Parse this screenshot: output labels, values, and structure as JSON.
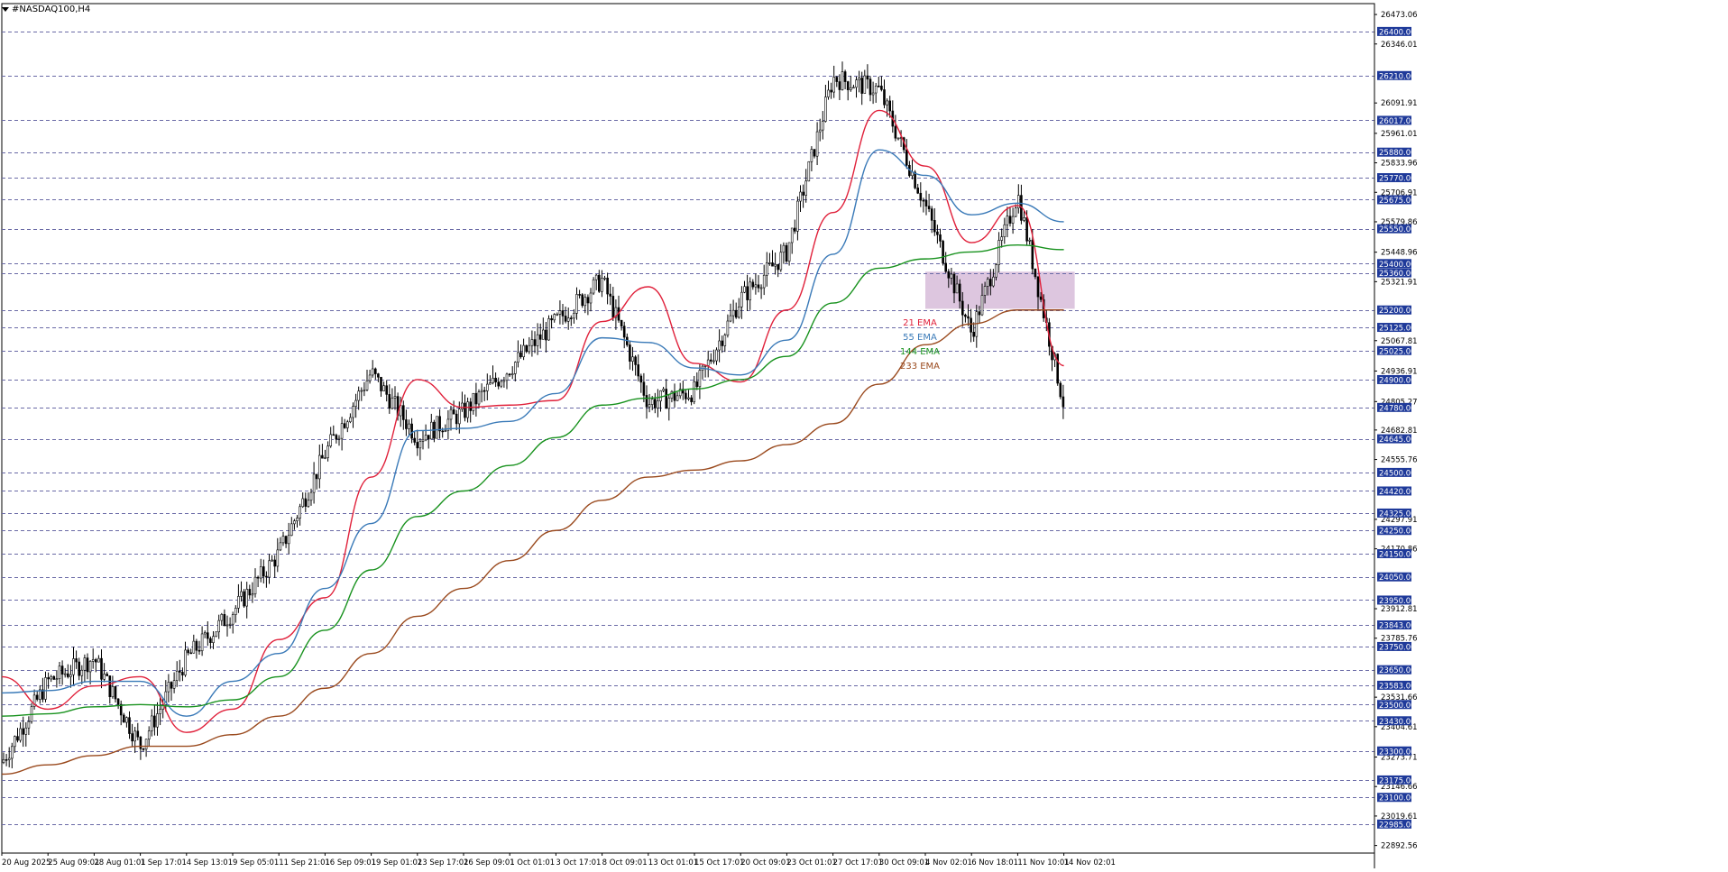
{
  "window": {
    "title": "#NASDAQ100,H4"
  },
  "colors": {
    "background": "#ffffff",
    "candle": "#000000",
    "grid": "#6a6aa6",
    "label_bg": "#1f3a9a",
    "label_text": "#ffffff",
    "zone": "#d7bcd9",
    "ema21": "#e0203a",
    "ema55": "#3a7ab8",
    "ema144": "#18921e",
    "ema233": "#9a4a1e"
  },
  "chart_data": {
    "type": "line",
    "instrument": "#NASDAQ100",
    "timeframe": "H4",
    "ylim": [
      22860,
      26520
    ],
    "grid": false,
    "y_ticks": [
      "26473.06",
      "26346.01",
      "26091.91",
      "25961.01",
      "25833.96",
      "25706.91",
      "25579.86",
      "25448.96",
      "25321.91",
      "25067.81",
      "24936.91",
      "24805.27",
      "24682.81",
      "24555.76",
      "24297.91",
      "24170.86",
      "23912.81",
      "23785.76",
      "23531.66",
      "23404.61",
      "23273.71",
      "23146.66",
      "23019.61",
      "22892.56"
    ],
    "x_ticks": [
      "20 Aug 2025",
      "25 Aug 09:01",
      "28 Aug 01:01",
      "1 Sep 17:01",
      "4 Sep 13:01",
      "9 Sep 05:01",
      "11 Sep 21:01",
      "16 Sep 09:01",
      "19 Sep 01:01",
      "23 Sep 17:01",
      "26 Sep 09:01",
      "1 Oct 01:01",
      "3 Oct 17:01",
      "8 Oct 09:01",
      "13 Oct 01:01",
      "15 Oct 17:01",
      "20 Oct 09:01",
      "23 Oct 01:01",
      "27 Oct 17:01",
      "30 Oct 09:01",
      "4 Nov 02:01",
      "6 Nov 18:01",
      "11 Nov 10:01",
      "14 Nov 02:01"
    ],
    "levels": [
      26400,
      26210,
      26017,
      25880,
      25770,
      25675,
      25550,
      25400,
      25360,
      25200,
      25125,
      25025,
      24900,
      24780,
      24645,
      24500,
      24420,
      24325,
      24250,
      24150,
      24050,
      23950,
      23843,
      23750,
      23650,
      23583,
      23500,
      23430,
      23300,
      23175,
      23100,
      22985
    ],
    "zone": {
      "from_x": "4 Nov 02:01",
      "to_x": "14 Nov 02:01",
      "top": 25365,
      "bottom": 25205
    },
    "price_anchors": [
      [
        "20 Aug 2025",
        23250
      ],
      [
        "25 Aug 09:01",
        23600
      ],
      [
        "28 Aug 01:01",
        23700
      ],
      [
        "1 Sep 17:01",
        23320
      ],
      [
        "4 Sep 13:01",
        23700
      ],
      [
        "9 Sep 05:01",
        23900
      ],
      [
        "11 Sep 21:01",
        24150
      ],
      [
        "16 Sep 09:01",
        24580
      ],
      [
        "19 Sep 01:01",
        24930
      ],
      [
        "23 Sep 17:01",
        24650
      ],
      [
        "26 Sep 09:01",
        24760
      ],
      [
        "1 Oct 01:01",
        24950
      ],
      [
        "3 Oct 17:01",
        25150
      ],
      [
        "8 Oct 09:01",
        25330
      ],
      [
        "13 Oct 01:01",
        24800
      ],
      [
        "15 Oct 17:01",
        24850
      ],
      [
        "20 Oct 09:01",
        25250
      ],
      [
        "23 Oct 01:01",
        25450
      ],
      [
        "27 Oct 17:01",
        26200
      ],
      [
        "30 Oct 09:01",
        26150
      ],
      [
        "4 Nov 02:01",
        25650
      ],
      [
        "6 Nov 18:01",
        25100
      ],
      [
        "11 Nov 10:01",
        25700
      ],
      [
        "14 Nov 02:01",
        24790
      ]
    ],
    "series": [
      {
        "name": "21 EMA",
        "values": [
          23620,
          23480,
          23580,
          23620,
          23380,
          23480,
          23780,
          23960,
          24480,
          24900,
          24780,
          24790,
          24810,
          25150,
          25300,
          24970,
          24890,
          25200,
          25620,
          26060,
          25820,
          25490,
          25650,
          24960
        ]
      },
      {
        "name": "55 EMA",
        "values": [
          23550,
          23560,
          23600,
          23600,
          23450,
          23600,
          23720,
          24000,
          24280,
          24680,
          24690,
          24720,
          24840,
          25080,
          25060,
          24950,
          24920,
          25070,
          25440,
          25890,
          25780,
          25610,
          25660,
          25580
        ]
      },
      {
        "name": "144 EMA",
        "values": [
          23450,
          23460,
          23490,
          23500,
          23490,
          23520,
          23620,
          23820,
          24080,
          24310,
          24420,
          24530,
          24650,
          24790,
          24820,
          24860,
          24900,
          25000,
          25230,
          25380,
          25420,
          25450,
          25480,
          25460
        ]
      },
      {
        "name": "233 EMA",
        "values": [
          23200,
          23240,
          23280,
          23320,
          23320,
          23370,
          23450,
          23570,
          23720,
          23880,
          24000,
          24120,
          24250,
          24380,
          24480,
          24510,
          24550,
          24620,
          24710,
          24880,
          25050,
          25140,
          25200,
          25200
        ]
      }
    ],
    "legend": {
      "position": "center-right"
    }
  }
}
